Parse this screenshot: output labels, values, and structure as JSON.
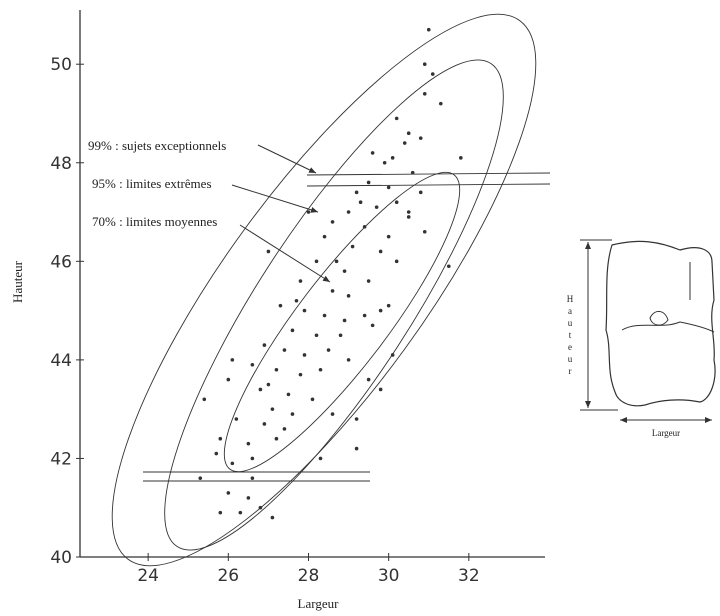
{
  "chart_data": {
    "type": "scatter",
    "x_label": "Largeur",
    "y_label": "Hauteur",
    "xlim": [
      22.3,
      33.9
    ],
    "ylim": [
      40,
      51.1
    ],
    "xticks": [
      24,
      26,
      28,
      30,
      32
    ],
    "yticks": [
      40,
      42,
      44,
      46,
      48,
      50
    ],
    "color": "#333333",
    "annotations": [
      "99% : sujets exceptionnels",
      "95% : limites extrêmes",
      "70% : limites moyennes"
    ],
    "inset": {
      "height_label": "Hauteur",
      "width_label": "Largeur"
    },
    "x": [
      31,
      30.9,
      31.1,
      30.9,
      31.3,
      30.2,
      30.5,
      30.8,
      30.4,
      31.8,
      29.6,
      29.9,
      30.1,
      30.6,
      29.5,
      30.0,
      30.8,
      29.3,
      29.7,
      30.2,
      30.5,
      29.0,
      28.6,
      29.4,
      30.9,
      30.0,
      28.4,
      29.1,
      29.8,
      30.2,
      31.5,
      28.2,
      28.9,
      29.5,
      27.8,
      28.6,
      29.0,
      30.0,
      27.3,
      27.9,
      28.4,
      28.9,
      29.4,
      27.6,
      28.2,
      28.8,
      29.6,
      26.9,
      27.4,
      27.9,
      28.5,
      29.0,
      30.1,
      26.6,
      27.2,
      27.8,
      28.3,
      29.5,
      26.0,
      26.8,
      27.5,
      28.1,
      27.1,
      27.6,
      28.6,
      25.4,
      26.2,
      26.9,
      27.4,
      29.2,
      25.8,
      26.5,
      27.2,
      25.7,
      26.1,
      26.6,
      28.3,
      29.2,
      25.3,
      26.6,
      26.0,
      26.5,
      25.8,
      26.3,
      26.8,
      27.1,
      26.1,
      27.0,
      29.8,
      30.5,
      28.0,
      27.7,
      28.7,
      29.2,
      27.0,
      29.8
    ],
    "values": [
      50.7,
      50,
      49.8,
      49.4,
      49.2,
      48.9,
      48.6,
      48.5,
      48.4,
      48.1,
      48.2,
      48.0,
      48.1,
      47.8,
      47.6,
      47.5,
      47.4,
      47.2,
      47.1,
      47.2,
      47.0,
      47.0,
      46.8,
      46.7,
      46.6,
      46.5,
      46.5,
      46.3,
      46.2,
      46.0,
      45.9,
      46.0,
      45.8,
      45.6,
      45.6,
      45.4,
      45.3,
      45.1,
      45.1,
      45.0,
      44.9,
      44.8,
      44.9,
      44.6,
      44.5,
      44.5,
      44.7,
      44.3,
      44.2,
      44.1,
      44.2,
      44.0,
      44.1,
      43.9,
      43.8,
      43.7,
      43.8,
      43.6,
      43.6,
      43.4,
      43.3,
      43.2,
      43.0,
      42.9,
      42.9,
      43.2,
      42.8,
      42.7,
      42.6,
      42.8,
      42.4,
      42.3,
      42.4,
      42.1,
      41.9,
      42.0,
      42.0,
      42.2,
      41.6,
      41.6,
      41.3,
      41.2,
      40.9,
      40.9,
      41.0,
      40.8,
      44.0,
      46.2,
      45.0,
      46.9,
      47.0,
      45.2,
      46.0,
      47.4,
      43.5,
      43.4
    ]
  }
}
